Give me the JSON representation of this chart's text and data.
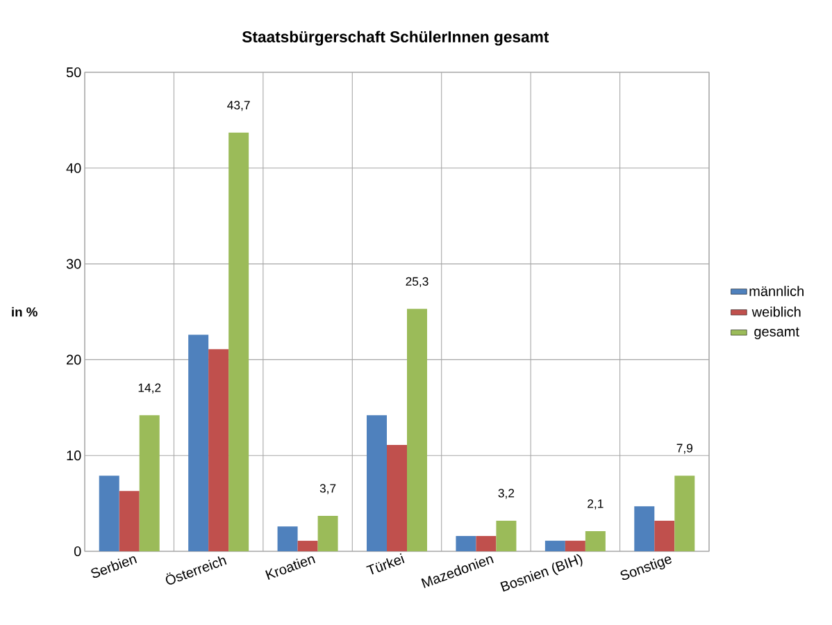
{
  "chart_data": {
    "type": "bar",
    "title": "Staatsbürgerschaft SchülerInnen gesamt",
    "ylabel": "in %",
    "categories": [
      "Serbien",
      "Österreich",
      "Kroatien",
      "Türkei",
      "Mazedonien",
      "Bosnien (BIH)",
      "Sonstige"
    ],
    "series": [
      {
        "name": "männlich",
        "color": "#4f81bd",
        "values": [
          7.9,
          22.6,
          2.6,
          14.2,
          1.6,
          1.1,
          4.7
        ]
      },
      {
        "name": "weiblich",
        "color": "#c0504d",
        "values": [
          6.3,
          21.1,
          1.1,
          11.1,
          1.6,
          1.1,
          3.2
        ]
      },
      {
        "name": "gesamt",
        "color": "#9bbb59",
        "values": [
          14.2,
          43.7,
          3.7,
          25.3,
          3.2,
          2.1,
          7.9
        ],
        "value_labels": [
          "14,2",
          "43,7",
          "3,7",
          "25,3",
          "3,2",
          "2,1",
          "7,9"
        ]
      }
    ],
    "ylim": [
      0,
      50
    ],
    "yticks": [
      0,
      10,
      20,
      30,
      40,
      50
    ],
    "grid": true,
    "legend": "right"
  }
}
